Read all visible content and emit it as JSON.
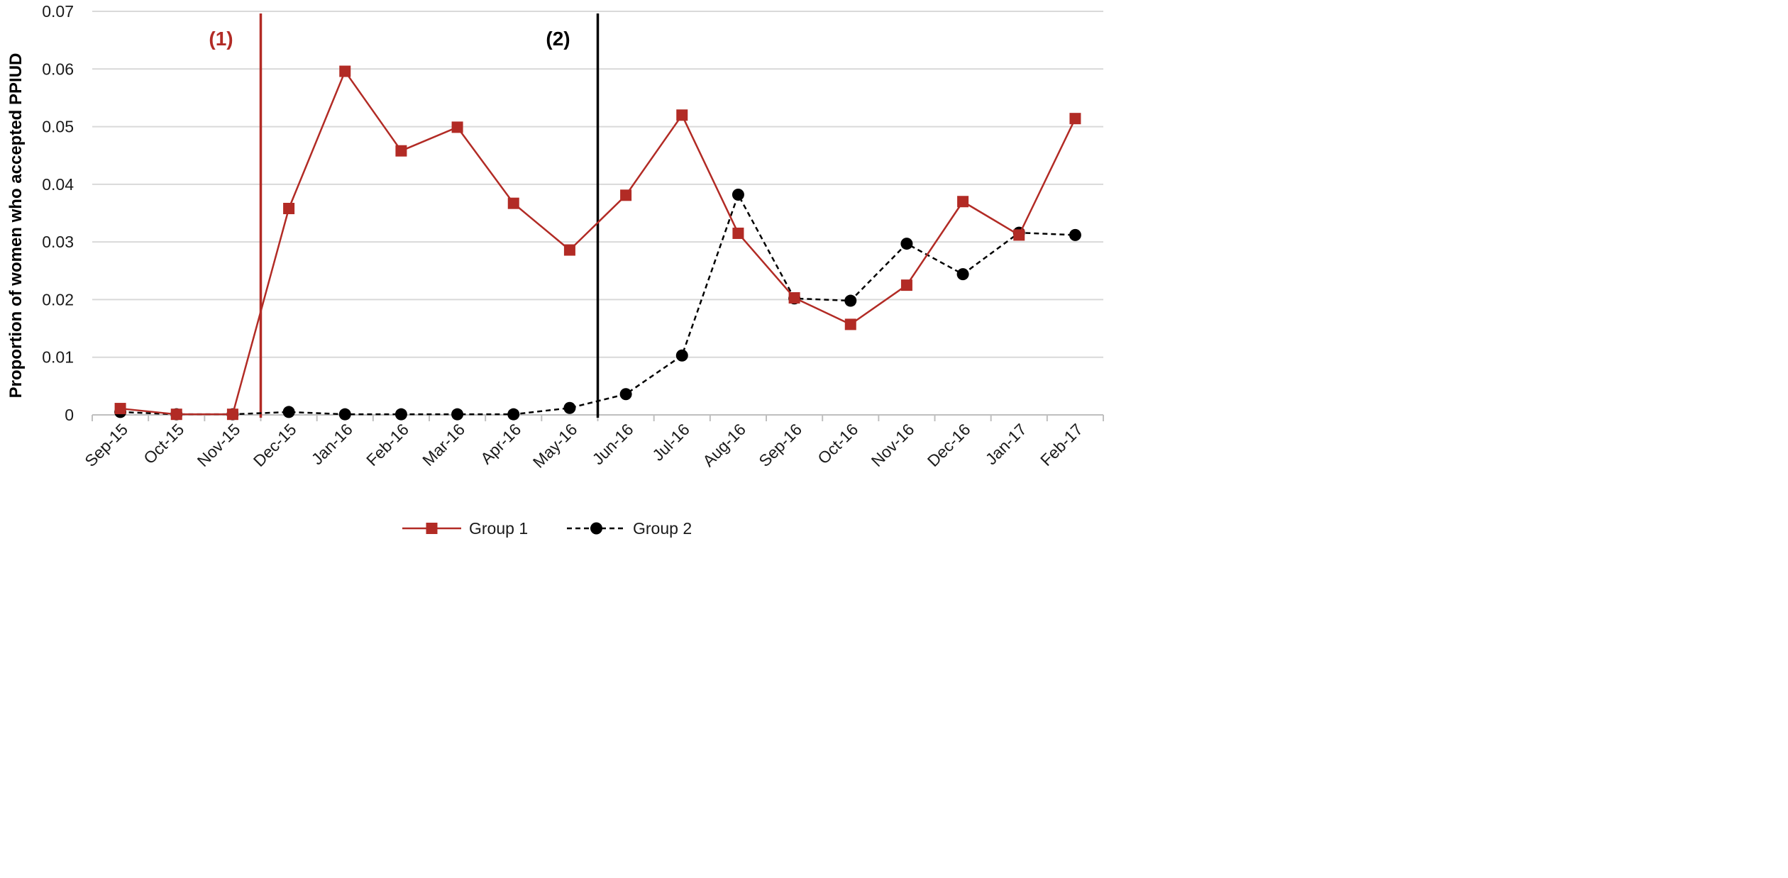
{
  "chart_data": {
    "type": "line",
    "title": "",
    "xlabel": "",
    "ylabel": "Proportion of women who accepted PPIUD",
    "ylim": [
      0,
      0.07
    ],
    "yticks": [
      "0",
      "0.01",
      "0.02",
      "0.03",
      "0.04",
      "0.05",
      "0.06",
      "0.07"
    ],
    "grid": "horizontal",
    "legend_position": "bottom",
    "categories": [
      "Sep-15",
      "Oct-15",
      "Nov-15",
      "Dec-15",
      "Jan-16",
      "Feb-16",
      "Mar-16",
      "Apr-16",
      "May-16",
      "Jun-16",
      "Jul-16",
      "Aug-16",
      "Sep-16",
      "Oct-16",
      "Nov-16",
      "Dec-16",
      "Jan-17",
      "Feb-17"
    ],
    "series": [
      {
        "name": "Group 1",
        "color": "#b22b25",
        "line_style": "solid",
        "marker": "square",
        "values": [
          0.0011,
          0.0001,
          0.0001,
          0.0358,
          0.0596,
          0.0458,
          0.0499,
          0.0367,
          0.0286,
          0.0381,
          0.052,
          0.0315,
          0.0203,
          0.0157,
          0.0225,
          0.037,
          0.0312,
          0.0514
        ]
      },
      {
        "name": "Group 2",
        "color": "#000000",
        "line_style": "dashed",
        "marker": "circle",
        "values": [
          0.0005,
          0.0001,
          0.0001,
          0.0005,
          0.0001,
          0.0001,
          0.0001,
          0.0001,
          0.0012,
          0.0036,
          0.0103,
          0.0382,
          0.0202,
          0.0198,
          0.0297,
          0.0244,
          0.0316,
          0.0312
        ]
      }
    ],
    "annotations": [
      {
        "label": "(1)",
        "between": [
          "Nov-15",
          "Dec-15"
        ],
        "color": "#b22b25"
      },
      {
        "label": "(2)",
        "between": [
          "May-16",
          "Jun-16"
        ],
        "color": "#000000"
      }
    ]
  }
}
